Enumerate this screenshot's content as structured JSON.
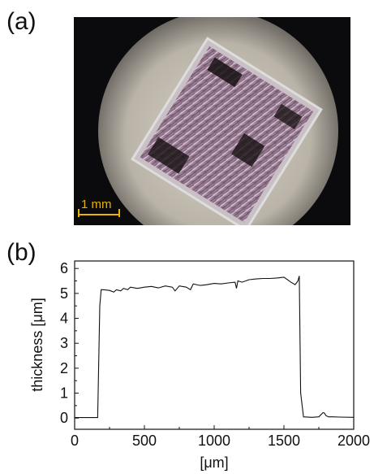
{
  "figure": {
    "panel_a_label": "(a)",
    "panel_b_label": "(b)",
    "scale_bar_label": "1 mm",
    "colors": {
      "background": "#0b0b0d",
      "vignette": "#b9b3a8",
      "crystal": "#8d6e86",
      "scale_bar": "#e8b400"
    }
  },
  "chart_data": {
    "type": "line",
    "xlabel": "[μm]",
    "ylabel": "thickness [μm]",
    "xlim": [
      0,
      2000
    ],
    "ylim": [
      -0.45,
      6.3
    ],
    "xticks": [
      0,
      500,
      1000,
      1500,
      2000
    ],
    "yticks": [
      0,
      1,
      2,
      3,
      4,
      5,
      6
    ],
    "grid": false,
    "legend": "none",
    "series": [
      {
        "x": [
          0,
          100,
          165,
          180,
          190,
          200,
          250,
          280,
          300,
          330,
          350,
          380,
          400,
          450,
          500,
          550,
          600,
          650,
          700,
          720,
          750,
          800,
          830,
          850,
          900,
          950,
          1000,
          1050,
          1100,
          1150,
          1160,
          1170,
          1200,
          1250,
          1300,
          1350,
          1400,
          1450,
          1500,
          1550,
          1580,
          1600,
          1610,
          1620,
          1640,
          1700,
          1750,
          1780,
          1790,
          1800,
          1820,
          1850,
          1900,
          2000
        ],
        "y": [
          0.02,
          0.02,
          0.02,
          4.5,
          5.15,
          5.15,
          5.12,
          5.05,
          5.15,
          5.1,
          5.2,
          5.15,
          5.25,
          5.2,
          5.25,
          5.28,
          5.22,
          5.3,
          5.25,
          5.1,
          5.3,
          5.25,
          5.15,
          5.38,
          5.32,
          5.35,
          5.4,
          5.38,
          5.42,
          5.45,
          5.2,
          5.5,
          5.45,
          5.55,
          5.58,
          5.6,
          5.6,
          5.62,
          5.65,
          5.45,
          5.35,
          5.5,
          5.7,
          1.0,
          0.05,
          0.03,
          0.05,
          0.22,
          0.2,
          0.1,
          0.05,
          0.05,
          0.04,
          0.03
        ]
      }
    ]
  }
}
